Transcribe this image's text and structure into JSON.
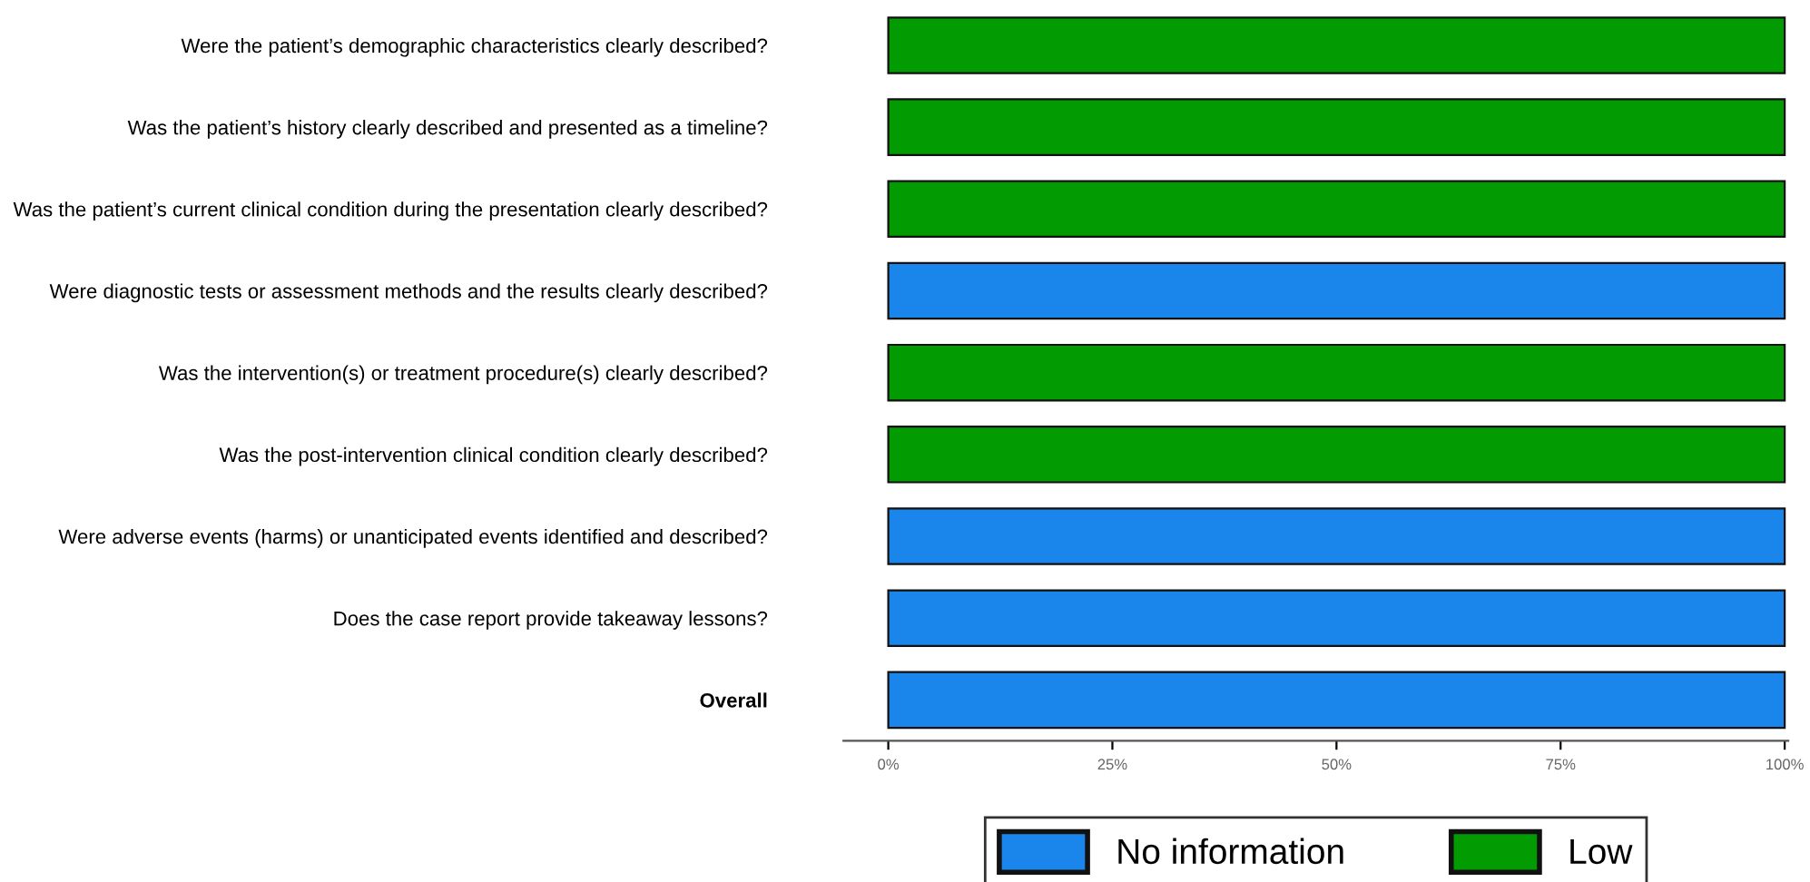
{
  "chart_data": {
    "type": "bar",
    "orientation": "horizontal",
    "categories": [
      "Were the patient’s demographic characteristics clearly described?",
      "Was the patient’s history clearly described and presented as a timeline?",
      "Was the patient’s current clinical condition during the presentation clearly described?",
      "Were diagnostic tests or assessment methods and the results clearly described?",
      "Was the intervention(s) or treatment procedure(s) clearly described?",
      "Was the post-intervention clinical condition clearly described?",
      "Were adverse events (harms) or unanticipated events identified and described?",
      "Does the case report provide takeaway lessons?",
      "Overall"
    ],
    "series": [
      {
        "name": "No information",
        "color": "#1a86ec",
        "values": [
          0,
          0,
          0,
          100,
          0,
          0,
          100,
          100,
          100
        ]
      },
      {
        "name": "Low",
        "color": "#029b02",
        "values": [
          100,
          100,
          100,
          0,
          100,
          100,
          0,
          0,
          0
        ]
      }
    ],
    "xlim": [
      -5,
      100.4
    ],
    "xticks": [
      {
        "value": 0,
        "label": "0%"
      },
      {
        "value": 25,
        "label": "25%"
      },
      {
        "value": 50,
        "label": "50%"
      },
      {
        "value": 75,
        "label": "75%"
      },
      {
        "value": 100,
        "label": "100%"
      }
    ],
    "grid": false,
    "legend": "bottom"
  }
}
